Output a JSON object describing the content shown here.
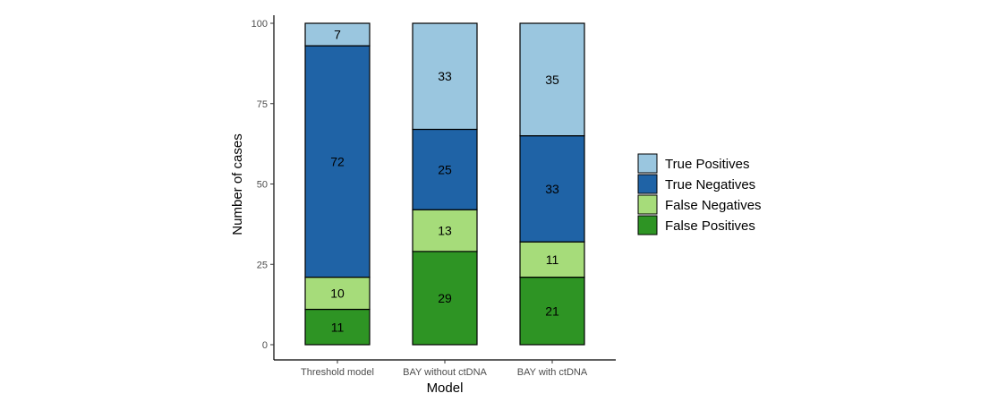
{
  "chart_data": {
    "type": "bar",
    "stacked": true,
    "categories": [
      "Threshold model",
      "BAY without ctDNA",
      "BAY with ctDNA"
    ],
    "series": [
      {
        "name": "False Positives",
        "values": [
          11,
          29,
          21
        ],
        "color": "#2e9424"
      },
      {
        "name": "False Negatives",
        "values": [
          10,
          13,
          11
        ],
        "color": "#a6dc7a"
      },
      {
        "name": "True Negatives",
        "values": [
          72,
          25,
          33
        ],
        "color": "#1f63a6"
      },
      {
        "name": "True Positives",
        "values": [
          7,
          33,
          35
        ],
        "color": "#9ac6df"
      }
    ],
    "legend_order": [
      "True Positives",
      "True Negatives",
      "False Negatives",
      "False Positives"
    ],
    "xlabel": "Model",
    "ylabel": "Number of cases",
    "ylim": [
      0,
      100
    ],
    "yticks": [
      0,
      25,
      50,
      75,
      100
    ],
    "grid": false,
    "legend_position": "right"
  }
}
